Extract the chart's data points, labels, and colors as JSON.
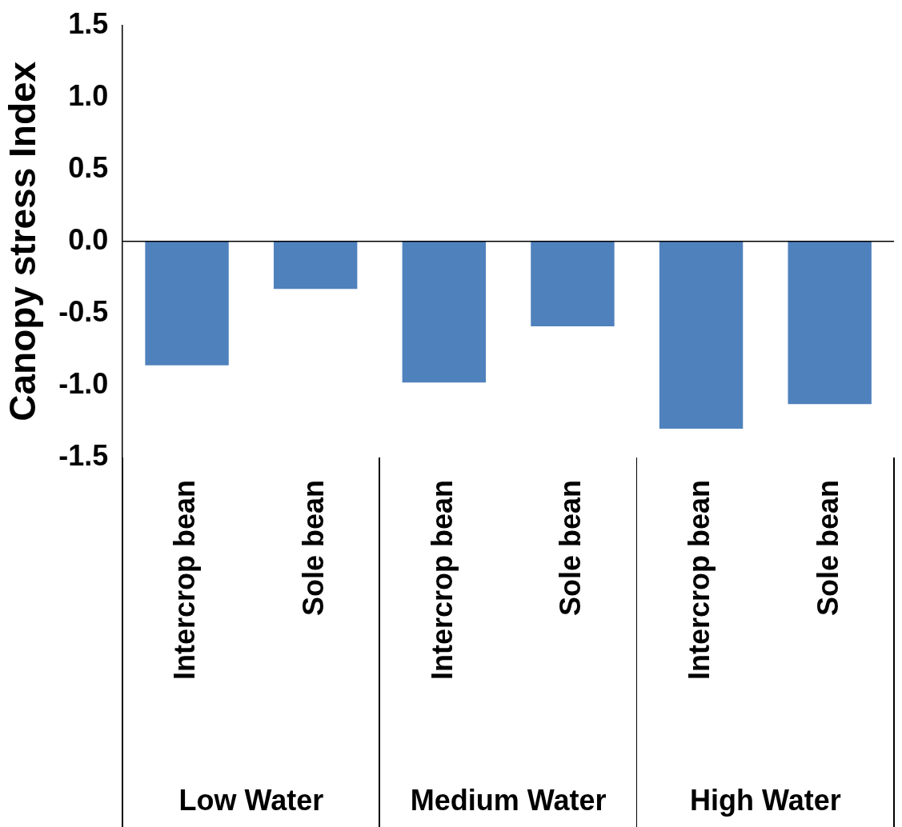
{
  "chart_data": {
    "type": "bar",
    "ylabel": "Canopy stress Index",
    "categories": [
      "Intercrop bean",
      "Sole bean",
      "Intercrop bean",
      "Sole bean",
      "Intercrop bean",
      "Sole bean"
    ],
    "values": [
      -0.86,
      -0.33,
      -0.98,
      -0.59,
      -1.3,
      -1.13
    ],
    "color": "#4f81bd",
    "ylim": [
      -1.5,
      1.5
    ],
    "yticks": [
      {
        "value": -1.5,
        "label": "-1.5"
      },
      {
        "value": -1,
        "label": "-1.0"
      },
      {
        "value": -0.5,
        "label": "-0.5"
      },
      {
        "value": 0,
        "label": "0.0"
      },
      {
        "value": 0.5,
        "label": "0.5"
      },
      {
        "value": 1,
        "label": "1.0"
      },
      {
        "value": 1.5,
        "label": "1.5"
      }
    ],
    "annotations": [
      "Low Water",
      "Medium Water",
      "High Water"
    ],
    "ref_lines": [
      {
        "axis": "y",
        "value": 0,
        "color": "#000000"
      }
    ],
    "grid": false,
    "legend": false
  }
}
